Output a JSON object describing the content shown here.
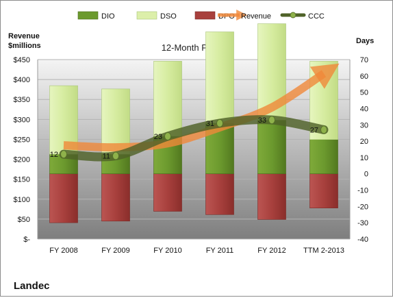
{
  "chart_data": {
    "type": "bar",
    "title": "12-Month Periods",
    "company": "Landec",
    "left_axis_label_line1": "Revenue",
    "left_axis_label_line2": "$millions",
    "right_axis_label": "Days",
    "categories": [
      "FY 2008",
      "FY 2009",
      "FY 2010",
      "FY 2011",
      "FY 2012",
      "TTM 2-2013"
    ],
    "legend": [
      "DIO",
      "DSO",
      "DPO",
      "Revenue",
      "CCC"
    ],
    "left_ylim": [
      0,
      450
    ],
    "left_ticks": [
      "$-",
      "$50",
      "$100",
      "$150",
      "$200",
      "$250",
      "$300",
      "$350",
      "$400",
      "$450"
    ],
    "right_ylim": [
      -40,
      70
    ],
    "right_ticks": [
      "-40",
      "-30",
      "-20",
      "-10",
      "0",
      "10",
      "20",
      "30",
      "40",
      "50",
      "60",
      "70"
    ],
    "legend_position": "top",
    "grid": true,
    "series": [
      {
        "name": "DIO",
        "axis": "days",
        "values": [
          12,
          12,
          23,
          31,
          33,
          21
        ],
        "color": "#6c9a2e"
      },
      {
        "name": "DSO",
        "axis": "days",
        "values": [
          42,
          40,
          46,
          56,
          59,
          48
        ],
        "color": "#dcefaa"
      },
      {
        "name": "DPO",
        "axis": "days",
        "values": [
          -30,
          -29,
          -23,
          -25,
          -28,
          -21
        ],
        "color": "#a8403d"
      },
      {
        "name": "Revenue",
        "axis": "revenue",
        "values": [
          235,
          230,
          240,
          280,
          330,
          415
        ],
        "color": "#f0883a"
      },
      {
        "name": "CCC",
        "axis": "days",
        "values": [
          12,
          11,
          23,
          31,
          33,
          27
        ],
        "color": "#4f6228"
      }
    ],
    "ccc_labels": [
      "12",
      "11",
      "23",
      "31",
      "33",
      "27"
    ]
  }
}
